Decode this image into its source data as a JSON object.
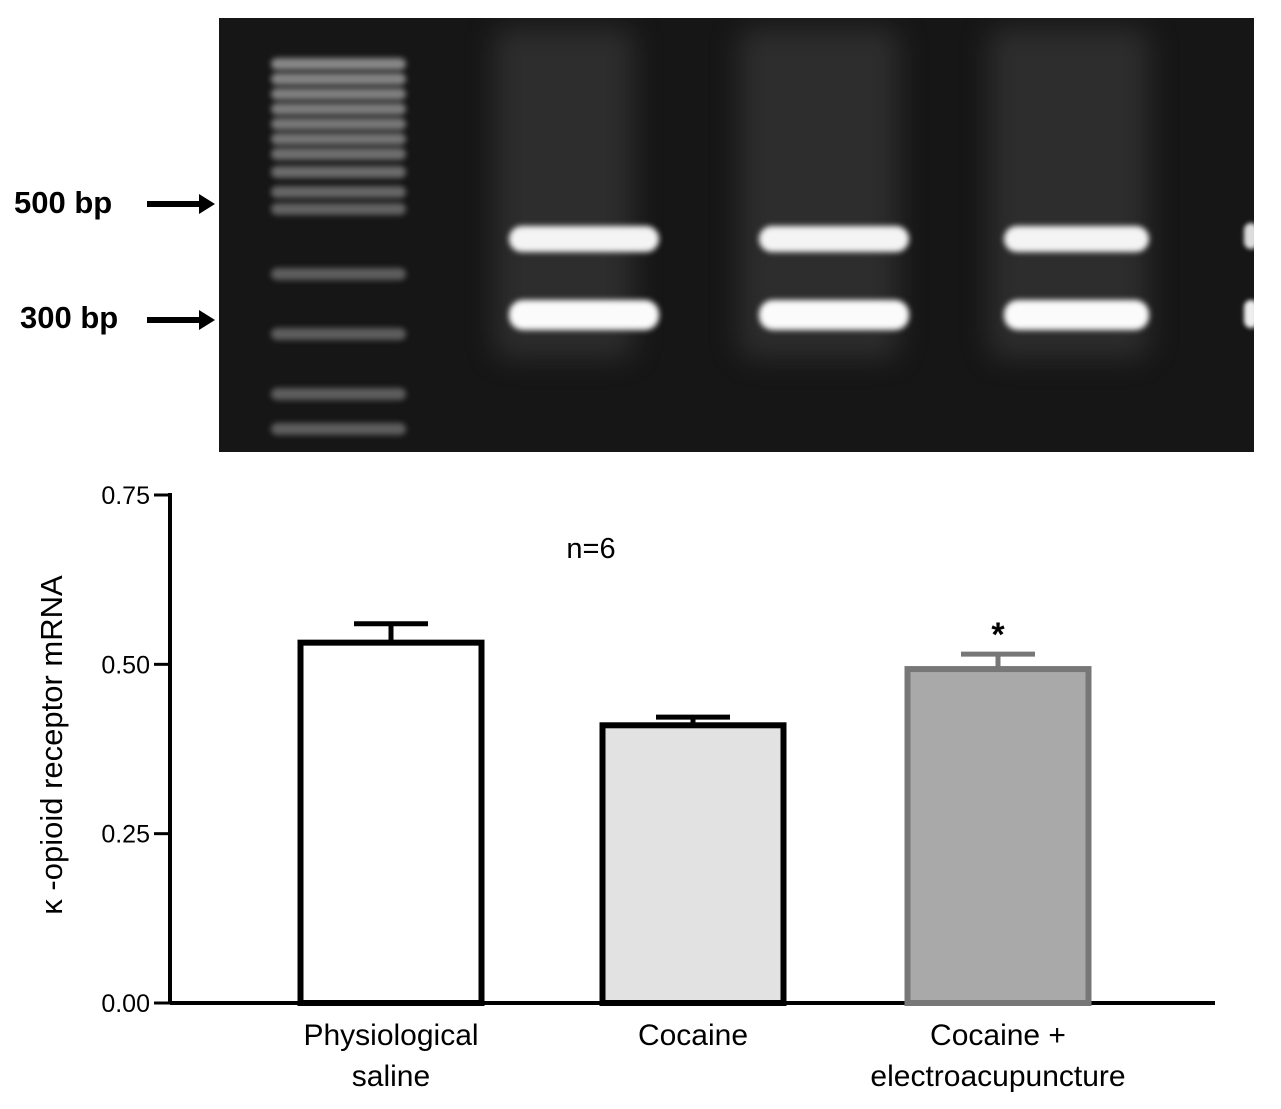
{
  "gel": {
    "markers": [
      {
        "label": "500 bp",
        "bp": 500
      },
      {
        "label": "300 bp",
        "bp": 300
      }
    ]
  },
  "chart_data": {
    "type": "bar",
    "categories": [
      "Physiological\nsaline",
      "Cocaine",
      "Cocaine +\nelectroacupuncture"
    ],
    "values": [
      0.532,
      0.41,
      0.493
    ],
    "errors": [
      0.028,
      0.012,
      0.022
    ],
    "annotations": [
      "",
      "",
      "*"
    ],
    "bar_colors": [
      "#ffffff",
      "#e2e2e2",
      "#a9a9a9"
    ],
    "bar_edge_colors": [
      "#000000",
      "#000000",
      "#777777"
    ],
    "ylabel": "κ -opioid receptor mRNA",
    "xlabel": "",
    "ylim": [
      0,
      0.75
    ],
    "yticks": [
      "0.00",
      "0.25",
      "0.50",
      "0.75"
    ],
    "inset_text": "n=6",
    "grid": false
  }
}
